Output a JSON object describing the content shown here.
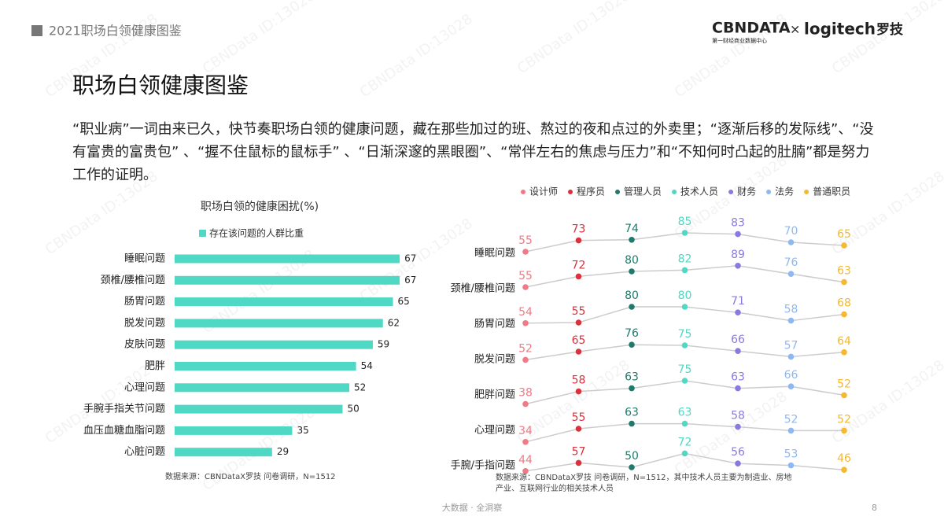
{
  "header": {
    "section": "2021职场白领健康图鉴",
    "logo_main": "CBNDATA",
    "logo_sub": "第一财经商业数据中心",
    "logo_times": "×",
    "logo_partner": "logitech",
    "logo_partner_cn": "罗技"
  },
  "watermark": "CBNData ID:13028",
  "title": "职场白领健康图鉴",
  "intro": "“职业病”一词由来已久，快节奏职场白领的健康问题，藏在那些加过的班、熬过的夜和点过的外卖里；“逐渐后移的发际线”、“没有富贵的富贵包” 、“握不住鼠标的鼠标手” 、“日渐深邃的黑眼圈”、“常伴左右的焦虑与压力”和“不知何时凸起的肚腩”都是努力工作的证明。",
  "chart_data": [
    {
      "type": "hbar",
      "title": "职场白领的健康困扰(%)",
      "legend": "存在该问题的人群比重",
      "color": "#4fd8c4",
      "categories": [
        "睡眠问题",
        "颈椎/腰椎问题",
        "肠胃问题",
        "脱发问题",
        "皮肤问题",
        "肥胖",
        "心理问题",
        "手腕手指关节问题",
        "血压血糖血脂问题",
        "心脏问题"
      ],
      "values": [
        67,
        67,
        65,
        62,
        59,
        54,
        52,
        50,
        35,
        29
      ],
      "source": "数据来源：CBNDataX罗技 问卷调研，N=1512"
    },
    {
      "type": "row-lines",
      "categories": [
        "睡眠问题",
        "颈椎/腰椎问题",
        "肠胃问题",
        "脱发问题",
        "肥胖问题",
        "心理问题",
        "手腕/手指问题"
      ],
      "series": [
        {
          "name": "设计师",
          "color": "#f07b86",
          "values": [
            55,
            55,
            54,
            52,
            38,
            34,
            44
          ]
        },
        {
          "name": "程序员",
          "color": "#d9323f",
          "values": [
            73,
            72,
            55,
            65,
            58,
            55,
            57
          ]
        },
        {
          "name": "管理人员",
          "color": "#1f7a6b",
          "values": [
            74,
            80,
            80,
            76,
            63,
            63,
            50
          ]
        },
        {
          "name": "技术人员",
          "color": "#4fd8c4",
          "values": [
            85,
            82,
            80,
            75,
            75,
            63,
            72
          ]
        },
        {
          "name": "财务",
          "color": "#8a79e0",
          "values": [
            83,
            89,
            71,
            66,
            63,
            58,
            56
          ]
        },
        {
          "name": "法务",
          "color": "#8fb8f0",
          "values": [
            70,
            76,
            58,
            57,
            66,
            52,
            53
          ]
        },
        {
          "name": "普通职员",
          "color": "#f5b82e",
          "values": [
            65,
            63,
            68,
            64,
            52,
            52,
            46
          ]
        }
      ],
      "source": "数据来源：CBNDataX罗技 问卷调研，N=1512，其中技术人员主要为制造业、房地产业、互联网行业的相关技术人员"
    }
  ],
  "footer": {
    "tagline": "大数据 · 全洞察",
    "page": "8"
  }
}
